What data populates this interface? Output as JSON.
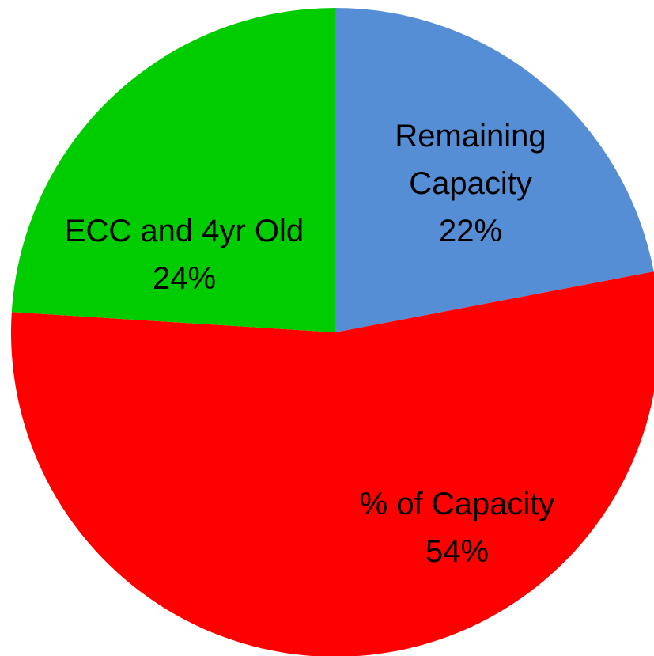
{
  "chart_data": {
    "type": "pie",
    "categories": [
      "Remaining Capacity",
      "% of Capacity",
      "ECC and 4yr Old"
    ],
    "values": [
      22,
      54,
      24
    ],
    "value_labels": [
      "22%",
      "54%",
      "24%"
    ],
    "colors": [
      "#558ed5",
      "#ff0000",
      "#00cc00"
    ]
  }
}
